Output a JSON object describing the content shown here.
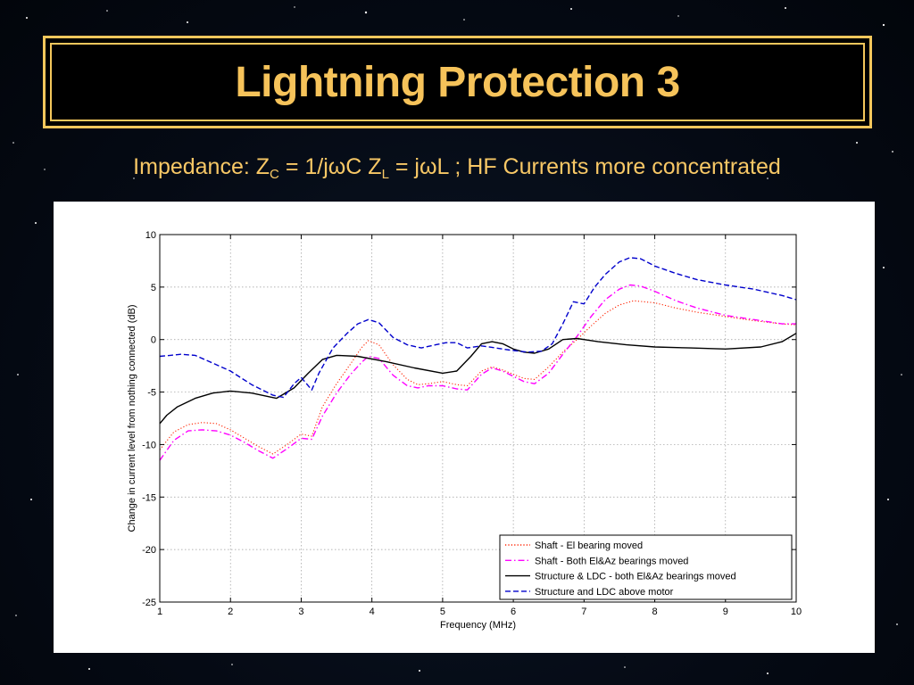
{
  "slide": {
    "title": "Lightning Protection 3",
    "subtitle": {
      "impedance_label": "Impedance: Z",
      "zc_sub": "C",
      "zc_expr": " = 1/jωC  Z",
      "zl_sub": "L",
      "zl_expr": " = jωL ; HF Currents more concentrated"
    }
  },
  "chart_data": {
    "type": "line",
    "xlabel": "Frequency (MHz)",
    "ylabel": "Change in current level from nothing connected (dB)",
    "xlim": [
      1,
      10
    ],
    "ylim": [
      -25,
      10
    ],
    "xticks": [
      1,
      2,
      3,
      4,
      5,
      6,
      7,
      8,
      9,
      10
    ],
    "yticks": [
      10,
      5,
      0,
      -5,
      -10,
      -15,
      -20,
      -25
    ],
    "grid": true,
    "legend_position": "bottom-right",
    "series": [
      {
        "name": "Shaft - El bearing moved",
        "color": "#ff2200",
        "style": "dotted",
        "x": [
          1,
          1.2,
          1.4,
          1.6,
          1.8,
          2.0,
          2.2,
          2.4,
          2.6,
          2.8,
          3.0,
          3.15,
          3.3,
          3.5,
          3.7,
          3.85,
          3.95,
          4.1,
          4.3,
          4.5,
          4.65,
          4.8,
          5.0,
          5.2,
          5.35,
          5.55,
          5.7,
          5.85,
          6.0,
          6.15,
          6.3,
          6.5,
          6.7,
          6.9,
          7.1,
          7.3,
          7.5,
          7.7,
          8.0,
          8.3,
          8.6,
          9.0,
          9.4,
          9.8,
          10
        ],
        "y": [
          -10.5,
          -8.8,
          -8.1,
          -7.9,
          -8.0,
          -8.6,
          -9.4,
          -10.2,
          -10.9,
          -10.0,
          -9.0,
          -9.2,
          -6.4,
          -4.2,
          -2.3,
          -0.8,
          -0.1,
          -0.5,
          -2.4,
          -3.8,
          -4.3,
          -4.2,
          -4.0,
          -4.3,
          -4.4,
          -3.0,
          -2.6,
          -2.9,
          -3.3,
          -3.7,
          -3.8,
          -2.6,
          -1.2,
          0.0,
          1.3,
          2.5,
          3.3,
          3.7,
          3.5,
          3.0,
          2.6,
          2.2,
          1.8,
          1.5,
          1.4
        ]
      },
      {
        "name": "Shaft - Both El&Az bearings moved",
        "color": "#ff00ff",
        "style": "dashdot",
        "x": [
          1,
          1.2,
          1.4,
          1.6,
          1.8,
          2.0,
          2.2,
          2.4,
          2.6,
          2.8,
          3.0,
          3.15,
          3.3,
          3.5,
          3.7,
          3.85,
          3.95,
          4.1,
          4.3,
          4.5,
          4.65,
          4.8,
          5.0,
          5.2,
          5.35,
          5.55,
          5.7,
          5.85,
          6.0,
          6.15,
          6.3,
          6.5,
          6.7,
          6.9,
          7.1,
          7.3,
          7.5,
          7.65,
          7.8,
          8.0,
          8.3,
          8.6,
          9.0,
          9.4,
          9.8,
          10
        ],
        "y": [
          -11.5,
          -9.6,
          -8.7,
          -8.6,
          -8.7,
          -9.1,
          -9.8,
          -10.6,
          -11.3,
          -10.4,
          -9.4,
          -9.5,
          -7.3,
          -5.1,
          -3.3,
          -2.2,
          -1.6,
          -1.8,
          -3.4,
          -4.4,
          -4.6,
          -4.4,
          -4.4,
          -4.7,
          -4.8,
          -3.3,
          -2.7,
          -3.0,
          -3.5,
          -4.0,
          -4.2,
          -3.2,
          -1.4,
          0.3,
          2.2,
          3.8,
          4.8,
          5.2,
          5.1,
          4.6,
          3.7,
          3.0,
          2.3,
          1.9,
          1.5,
          1.5
        ]
      },
      {
        "name": "Structure & LDC - both El&Az bearings moved",
        "color": "#000000",
        "style": "solid",
        "x": [
          1,
          1.1,
          1.25,
          1.5,
          1.75,
          2.0,
          2.3,
          2.65,
          2.9,
          3.1,
          3.3,
          3.5,
          3.8,
          4.2,
          4.6,
          5.0,
          5.2,
          5.4,
          5.55,
          5.7,
          5.85,
          6.0,
          6.15,
          6.3,
          6.5,
          6.7,
          6.9,
          7.2,
          7.6,
          8.0,
          8.5,
          9.0,
          9.5,
          9.8,
          10
        ],
        "y": [
          -8.0,
          -7.2,
          -6.4,
          -5.6,
          -5.1,
          -4.9,
          -5.1,
          -5.6,
          -4.6,
          -3.2,
          -1.9,
          -1.5,
          -1.6,
          -2.1,
          -2.7,
          -3.2,
          -3.0,
          -1.6,
          -0.4,
          -0.2,
          -0.4,
          -0.9,
          -1.2,
          -1.3,
          -0.9,
          0.0,
          0.1,
          -0.2,
          -0.5,
          -0.7,
          -0.8,
          -0.9,
          -0.7,
          -0.2,
          0.6
        ]
      },
      {
        "name": "Structure and LDC above motor",
        "color": "#0000cc",
        "style": "dashed",
        "x": [
          1,
          1.15,
          1.3,
          1.5,
          1.7,
          2.0,
          2.3,
          2.6,
          2.75,
          2.9,
          3.0,
          3.15,
          3.25,
          3.45,
          3.65,
          3.8,
          3.95,
          4.1,
          4.3,
          4.5,
          4.7,
          4.9,
          5.05,
          5.2,
          5.35,
          5.55,
          5.75,
          5.95,
          6.2,
          6.4,
          6.55,
          6.7,
          6.85,
          7.0,
          7.15,
          7.3,
          7.5,
          7.65,
          7.8,
          8.0,
          8.3,
          8.6,
          9.0,
          9.4,
          9.8,
          10
        ],
        "y": [
          -1.6,
          -1.5,
          -1.4,
          -1.5,
          -2.1,
          -3.0,
          -4.3,
          -5.3,
          -5.5,
          -4.2,
          -3.6,
          -4.8,
          -3.2,
          -0.8,
          0.6,
          1.5,
          1.9,
          1.6,
          0.2,
          -0.5,
          -0.8,
          -0.5,
          -0.3,
          -0.3,
          -0.8,
          -0.6,
          -0.8,
          -1.0,
          -1.2,
          -1.1,
          -0.4,
          1.5,
          3.6,
          3.4,
          5.0,
          6.2,
          7.4,
          7.8,
          7.7,
          7.0,
          6.3,
          5.7,
          5.2,
          4.8,
          4.2,
          3.8
        ]
      }
    ]
  }
}
